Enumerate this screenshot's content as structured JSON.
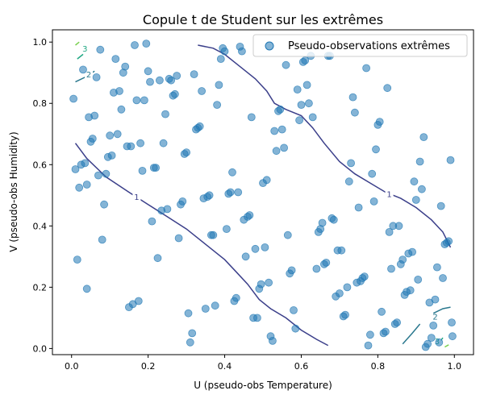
{
  "chart_data": {
    "type": "scatter",
    "title": "Copule t de Student sur les extrêmes",
    "xlabel": "U (pseudo-obs Temperature)",
    "ylabel": "V (pseudo-obs Humidity)",
    "xlim": [
      -0.05,
      1.05
    ],
    "ylim": [
      -0.02,
      1.04
    ],
    "xticks": [
      0.0,
      0.2,
      0.4,
      0.6,
      0.8,
      1.0
    ],
    "yticks": [
      0.0,
      0.2,
      0.4,
      0.6,
      0.8,
      1.0
    ],
    "tick_labels_x": [
      "0.0",
      "0.2",
      "0.4",
      "0.6",
      "0.8",
      "1.0"
    ],
    "tick_labels_y": [
      "0.0",
      "0.2",
      "0.4",
      "0.6",
      "0.8",
      "1.0"
    ],
    "legend": {
      "label": "Pseudo-observations extrêmes",
      "position": "top-right"
    },
    "colors": {
      "points": "#1f77b4",
      "level_1": "#3b3f8a",
      "level_2": "#2a788e",
      "level_3": "#22a884",
      "level_4": "#7ad151"
    },
    "series": [
      {
        "name": "Pseudo-observations extrêmes",
        "points": [
          [
            0.005,
            0.815
          ],
          [
            0.01,
            0.585
          ],
          [
            0.015,
            0.29
          ],
          [
            0.02,
            0.525
          ],
          [
            0.025,
            0.6
          ],
          [
            0.03,
            0.91
          ],
          [
            0.035,
            0.605
          ],
          [
            0.04,
            0.535
          ],
          [
            0.04,
            0.195
          ],
          [
            0.045,
            0.755
          ],
          [
            0.05,
            0.675
          ],
          [
            0.055,
            0.685
          ],
          [
            0.06,
            0.76
          ],
          [
            0.065,
            0.885
          ],
          [
            0.07,
            0.565
          ],
          [
            0.075,
            0.975
          ],
          [
            0.08,
            0.355
          ],
          [
            0.085,
            0.47
          ],
          [
            0.09,
            0.57
          ],
          [
            0.095,
            0.625
          ],
          [
            0.1,
            0.695
          ],
          [
            0.105,
            0.63
          ],
          [
            0.11,
            0.835
          ],
          [
            0.115,
            0.945
          ],
          [
            0.12,
            0.7
          ],
          [
            0.125,
            0.84
          ],
          [
            0.13,
            0.78
          ],
          [
            0.135,
            0.9
          ],
          [
            0.14,
            0.92
          ],
          [
            0.145,
            0.66
          ],
          [
            0.15,
            0.135
          ],
          [
            0.155,
            0.66
          ],
          [
            0.16,
            0.145
          ],
          [
            0.165,
            0.99
          ],
          [
            0.17,
            0.81
          ],
          [
            0.175,
            0.155
          ],
          [
            0.18,
            0.67
          ],
          [
            0.185,
            0.58
          ],
          [
            0.19,
            0.81
          ],
          [
            0.195,
            0.995
          ],
          [
            0.2,
            0.905
          ],
          [
            0.205,
            0.87
          ],
          [
            0.21,
            0.415
          ],
          [
            0.215,
            0.59
          ],
          [
            0.22,
            0.59
          ],
          [
            0.225,
            0.295
          ],
          [
            0.23,
            0.875
          ],
          [
            0.235,
            0.45
          ],
          [
            0.24,
            0.67
          ],
          [
            0.245,
            0.765
          ],
          [
            0.25,
            0.455
          ],
          [
            0.255,
            0.88
          ],
          [
            0.26,
            0.875
          ],
          [
            0.265,
            0.825
          ],
          [
            0.27,
            0.83
          ],
          [
            0.275,
            0.89
          ],
          [
            0.28,
            0.36
          ],
          [
            0.285,
            0.47
          ],
          [
            0.29,
            0.48
          ],
          [
            0.295,
            0.635
          ],
          [
            0.3,
            0.64
          ],
          [
            0.305,
            0.115
          ],
          [
            0.31,
            0.02
          ],
          [
            0.315,
            0.05
          ],
          [
            0.32,
            0.895
          ],
          [
            0.325,
            0.715
          ],
          [
            0.33,
            0.72
          ],
          [
            0.335,
            0.725
          ],
          [
            0.34,
            0.84
          ],
          [
            0.345,
            0.49
          ],
          [
            0.35,
            0.13
          ],
          [
            0.355,
            0.495
          ],
          [
            0.36,
            0.5
          ],
          [
            0.365,
            0.37
          ],
          [
            0.37,
            0.37
          ],
          [
            0.375,
            0.14
          ],
          [
            0.38,
            0.795
          ],
          [
            0.385,
            0.86
          ],
          [
            0.39,
            0.945
          ],
          [
            0.395,
            0.98
          ],
          [
            0.4,
            0.97
          ],
          [
            0.405,
            0.39
          ],
          [
            0.41,
            0.505
          ],
          [
            0.415,
            0.51
          ],
          [
            0.42,
            0.575
          ],
          [
            0.425,
            0.155
          ],
          [
            0.43,
            0.165
          ],
          [
            0.435,
            0.51
          ],
          [
            0.44,
            0.985
          ],
          [
            0.445,
            0.97
          ],
          [
            0.45,
            0.42
          ],
          [
            0.455,
            0.3
          ],
          [
            0.46,
            0.43
          ],
          [
            0.465,
            0.435
          ],
          [
            0.47,
            0.755
          ],
          [
            0.475,
            0.1
          ],
          [
            0.48,
            0.325
          ],
          [
            0.485,
            0.1
          ],
          [
            0.49,
            0.195
          ],
          [
            0.495,
            0.21
          ],
          [
            0.5,
            0.54
          ],
          [
            0.505,
            0.33
          ],
          [
            0.51,
            0.55
          ],
          [
            0.515,
            0.215
          ],
          [
            0.52,
            0.04
          ],
          [
            0.525,
            0.025
          ],
          [
            0.53,
            0.71
          ],
          [
            0.535,
            0.645
          ],
          [
            0.54,
            0.775
          ],
          [
            0.545,
            0.78
          ],
          [
            0.55,
            0.715
          ],
          [
            0.555,
            0.655
          ],
          [
            0.56,
            0.925
          ],
          [
            0.565,
            0.37
          ],
          [
            0.57,
            0.245
          ],
          [
            0.575,
            0.255
          ],
          [
            0.58,
            0.125
          ],
          [
            0.585,
            0.065
          ],
          [
            0.59,
            0.845
          ],
          [
            0.595,
            0.745
          ],
          [
            0.6,
            0.795
          ],
          [
            0.605,
            0.935
          ],
          [
            0.61,
            0.94
          ],
          [
            0.615,
            0.86
          ],
          [
            0.62,
            0.8
          ],
          [
            0.625,
            0.955
          ],
          [
            0.63,
            0.755
          ],
          [
            0.64,
            0.26
          ],
          [
            0.645,
            0.38
          ],
          [
            0.65,
            0.39
          ],
          [
            0.655,
            0.41
          ],
          [
            0.66,
            0.275
          ],
          [
            0.665,
            0.28
          ],
          [
            0.67,
            0.955
          ],
          [
            0.675,
            0.955
          ],
          [
            0.68,
            0.425
          ],
          [
            0.685,
            0.42
          ],
          [
            0.69,
            0.17
          ],
          [
            0.695,
            0.32
          ],
          [
            0.7,
            0.18
          ],
          [
            0.705,
            0.32
          ],
          [
            0.71,
            0.105
          ],
          [
            0.715,
            0.11
          ],
          [
            0.72,
            0.2
          ],
          [
            0.725,
            0.545
          ],
          [
            0.73,
            0.605
          ],
          [
            0.735,
            0.82
          ],
          [
            0.74,
            0.77
          ],
          [
            0.745,
            0.215
          ],
          [
            0.75,
            0.46
          ],
          [
            0.755,
            0.22
          ],
          [
            0.76,
            0.23
          ],
          [
            0.765,
            0.235
          ],
          [
            0.77,
            0.915
          ],
          [
            0.775,
            0.01
          ],
          [
            0.78,
            0.045
          ],
          [
            0.785,
            0.57
          ],
          [
            0.79,
            0.48
          ],
          [
            0.795,
            0.65
          ],
          [
            0.8,
            0.73
          ],
          [
            0.805,
            0.74
          ],
          [
            0.81,
            0.12
          ],
          [
            0.815,
            0.05
          ],
          [
            0.82,
            0.055
          ],
          [
            0.825,
            0.85
          ],
          [
            0.83,
            0.38
          ],
          [
            0.835,
            0.26
          ],
          [
            0.84,
            0.4
          ],
          [
            0.845,
            0.08
          ],
          [
            0.85,
            0.085
          ],
          [
            0.855,
            0.4
          ],
          [
            0.86,
            0.275
          ],
          [
            0.865,
            0.29
          ],
          [
            0.87,
            0.175
          ],
          [
            0.875,
            0.185
          ],
          [
            0.88,
            0.31
          ],
          [
            0.885,
            0.19
          ],
          [
            0.89,
            0.315
          ],
          [
            0.895,
            0.545
          ],
          [
            0.9,
            0.485
          ],
          [
            0.905,
            0.225
          ],
          [
            0.91,
            0.61
          ],
          [
            0.915,
            0.52
          ],
          [
            0.92,
            0.69
          ],
          [
            0.925,
            0.005
          ],
          [
            0.93,
            0.015
          ],
          [
            0.935,
            0.15
          ],
          [
            0.94,
            0.035
          ],
          [
            0.945,
            0.075
          ],
          [
            0.95,
            0.16
          ],
          [
            0.955,
            0.265
          ],
          [
            0.96,
            0.02
          ],
          [
            0.965,
            0.465
          ],
          [
            0.97,
            0.23
          ],
          [
            0.975,
            0.34
          ],
          [
            0.98,
            0.345
          ],
          [
            0.985,
            0.35
          ],
          [
            0.99,
            0.615
          ],
          [
            0.993,
            0.085
          ],
          [
            0.995,
            0.04
          ]
        ]
      }
    ],
    "contours": [
      {
        "level": "1",
        "color_key": "level_1",
        "paths": [
          {
            "points": [
              [
                0.01,
                0.67
              ],
              [
                0.04,
                0.62
              ],
              [
                0.09,
                0.56
              ],
              [
                0.15,
                0.51
              ],
              [
                0.2,
                0.47
              ],
              [
                0.25,
                0.43
              ],
              [
                0.3,
                0.39
              ],
              [
                0.35,
                0.34
              ],
              [
                0.4,
                0.29
              ],
              [
                0.43,
                0.25
              ],
              [
                0.46,
                0.21
              ],
              [
                0.49,
                0.16
              ],
              [
                0.52,
                0.13
              ],
              [
                0.56,
                0.1
              ],
              [
                0.6,
                0.06
              ],
              [
                0.64,
                0.03
              ],
              [
                0.67,
                0.01
              ]
            ],
            "label_at": [
              0.17,
              0.495
            ]
          },
          {
            "points": [
              [
                0.33,
                0.99
              ],
              [
                0.37,
                0.98
              ],
              [
                0.4,
                0.96
              ],
              [
                0.44,
                0.92
              ],
              [
                0.48,
                0.88
              ],
              [
                0.51,
                0.84
              ],
              [
                0.53,
                0.8
              ],
              [
                0.56,
                0.78
              ],
              [
                0.6,
                0.76
              ],
              [
                0.63,
                0.72
              ],
              [
                0.66,
                0.67
              ],
              [
                0.7,
                0.61
              ],
              [
                0.74,
                0.57
              ],
              [
                0.78,
                0.54
              ],
              [
                0.82,
                0.51
              ],
              [
                0.86,
                0.49
              ],
              [
                0.9,
                0.46
              ],
              [
                0.94,
                0.42
              ],
              [
                0.97,
                0.38
              ],
              [
                0.99,
                0.33
              ]
            ],
            "label_at": [
              0.83,
              0.505
            ]
          }
        ]
      },
      {
        "level": "2",
        "color_key": "level_2",
        "paths": [
          {
            "points": [
              [
                0.01,
                0.87
              ],
              [
                0.035,
                0.885
              ],
              [
                0.06,
                0.905
              ]
            ],
            "label_at": [
              0.045,
              0.895
            ]
          },
          {
            "points": [
              [
                0.865,
                0.015
              ],
              [
                0.89,
                0.05
              ],
              [
                0.91,
                0.08
              ]
            ],
            "label_at": [
              0.95,
              0.105
            ]
          },
          {
            "points": [
              [
                0.945,
                0.115
              ],
              [
                0.97,
                0.13
              ],
              [
                0.99,
                0.135
              ]
            ],
            "label_at": null
          }
        ]
      },
      {
        "level": "3",
        "color_key": "level_3",
        "paths": [
          {
            "points": [
              [
                0.015,
                0.945
              ],
              [
                0.03,
                0.96
              ]
            ],
            "label_at": [
              0.035,
              0.98
            ]
          },
          {
            "points": [
              [
                0.958,
                0.015
              ],
              [
                0.97,
                0.035
              ]
            ],
            "label_at": [
              0.955,
              0.025
            ]
          }
        ]
      },
      {
        "level": "4",
        "color_key": "level_4",
        "paths": [
          {
            "points": [
              [
                0.01,
                0.99
              ],
              [
                0.02,
                1.0
              ]
            ],
            "label_at": null
          },
          {
            "points": [
              [
                0.975,
                0.005
              ],
              [
                0.985,
                0.012
              ]
            ],
            "label_at": null
          }
        ]
      }
    ]
  }
}
